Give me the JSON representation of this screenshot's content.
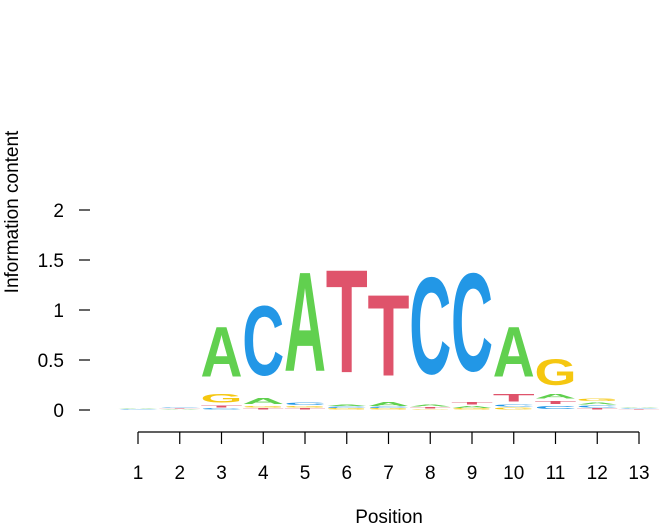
{
  "chart_data": {
    "type": "sequence-logo",
    "xlabel": "Position",
    "ylabel": "Information content",
    "ylim": [
      0,
      2
    ],
    "yticks": [
      "0",
      "0.5",
      "1",
      "1.5",
      "2"
    ],
    "xticks": [
      "1",
      "2",
      "3",
      "4",
      "5",
      "6",
      "7",
      "8",
      "9",
      "10",
      "11",
      "12",
      "13"
    ],
    "colors": {
      "A": "#61D04F",
      "C": "#2297E6",
      "G": "#F5C710",
      "T": "#DF536B"
    },
    "positions": [
      {
        "position": "1",
        "letters": [
          {
            "base": "C",
            "height": 0.01
          },
          {
            "base": "A",
            "height": 0.008
          }
        ]
      },
      {
        "position": "2",
        "letters": [
          {
            "base": "A",
            "height": 0.012
          },
          {
            "base": "T",
            "height": 0.01
          },
          {
            "base": "C",
            "height": 0.01
          }
        ]
      },
      {
        "position": "3",
        "letters": [
          {
            "base": "C",
            "height": 0.02
          },
          {
            "base": "T",
            "height": 0.03
          },
          {
            "base": "G",
            "height": 0.13
          },
          {
            "base": "A",
            "height": 0.8
          }
        ]
      },
      {
        "position": "4",
        "letters": [
          {
            "base": "T",
            "height": 0.02
          },
          {
            "base": "G",
            "height": 0.02
          },
          {
            "base": "A",
            "height": 0.09
          },
          {
            "base": "C",
            "height": 1.11
          }
        ]
      },
      {
        "position": "5",
        "letters": [
          {
            "base": "T",
            "height": 0.02
          },
          {
            "base": "G",
            "height": 0.02
          },
          {
            "base": "C",
            "height": 0.04
          },
          {
            "base": "A",
            "height": 1.59
          }
        ]
      },
      {
        "position": "6",
        "letters": [
          {
            "base": "G",
            "height": 0.015
          },
          {
            "base": "C",
            "height": 0.02
          },
          {
            "base": "A",
            "height": 0.02
          },
          {
            "base": "T",
            "height": 1.65
          }
        ]
      },
      {
        "position": "7",
        "letters": [
          {
            "base": "G",
            "height": 0.015
          },
          {
            "base": "C",
            "height": 0.015
          },
          {
            "base": "A",
            "height": 0.06
          },
          {
            "base": "T",
            "height": 1.3
          }
        ]
      },
      {
        "position": "8",
        "letters": [
          {
            "base": "G",
            "height": 0.01
          },
          {
            "base": "T",
            "height": 0.02
          },
          {
            "base": "A",
            "height": 0.03
          },
          {
            "base": "C",
            "height": 1.55
          }
        ]
      },
      {
        "position": "9",
        "letters": [
          {
            "base": "G",
            "height": 0.015
          },
          {
            "base": "A",
            "height": 0.03
          },
          {
            "base": "T",
            "height": 0.04
          },
          {
            "base": "C",
            "height": 1.57
          }
        ]
      },
      {
        "position": "10",
        "letters": [
          {
            "base": "G",
            "height": 0.03
          },
          {
            "base": "C",
            "height": 0.03
          },
          {
            "base": "T",
            "height": 0.12
          },
          {
            "base": "A",
            "height": 0.8
          }
        ]
      },
      {
        "position": "11",
        "letters": [
          {
            "base": "C",
            "height": 0.05
          },
          {
            "base": "T",
            "height": 0.05
          },
          {
            "base": "A",
            "height": 0.07
          },
          {
            "base": "G",
            "height": 0.42
          }
        ]
      },
      {
        "position": "12",
        "letters": [
          {
            "base": "T",
            "height": 0.02
          },
          {
            "base": "C",
            "height": 0.03
          },
          {
            "base": "A",
            "height": 0.03
          },
          {
            "base": "G",
            "height": 0.04
          }
        ]
      },
      {
        "position": "13",
        "letters": [
          {
            "base": "T",
            "height": 0.01
          },
          {
            "base": "C",
            "height": 0.01
          },
          {
            "base": "A",
            "height": 0.01
          }
        ]
      }
    ]
  }
}
